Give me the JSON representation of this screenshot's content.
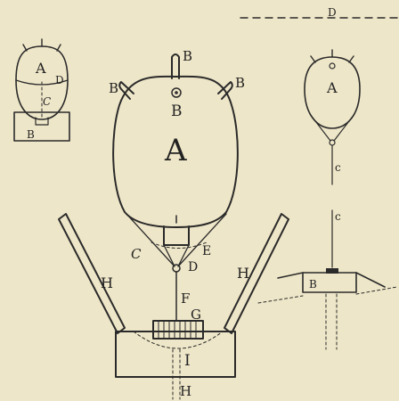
{
  "figure": {
    "background": "#eee6c8",
    "ink": "#2a2a2a"
  },
  "labels": {
    "main": {
      "A": "A",
      "B_top": "B",
      "B_left": "B",
      "B_right": "B",
      "B_center": "B",
      "C": "C",
      "D": "D",
      "E": "E",
      "F": "F",
      "G": "G",
      "H_left": "H",
      "H_right": "H",
      "I": "I",
      "H_bottom": "H"
    },
    "small_left": {
      "A": "A",
      "D": "D",
      "C": "C",
      "B": "B"
    },
    "small_right": {
      "D": "D",
      "A": "A",
      "C_upper": "c",
      "C_lower": "c",
      "B": "B"
    }
  }
}
